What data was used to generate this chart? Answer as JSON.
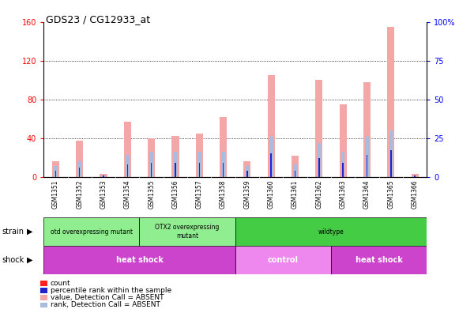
{
  "title": "GDS23 / CG12933_at",
  "samples": [
    "GSM1351",
    "GSM1352",
    "GSM1353",
    "GSM1354",
    "GSM1355",
    "GSM1356",
    "GSM1357",
    "GSM1358",
    "GSM1359",
    "GSM1360",
    "GSM1361",
    "GSM1362",
    "GSM1363",
    "GSM1364",
    "GSM1365",
    "GSM1366"
  ],
  "absent_value": [
    16,
    37,
    3,
    57,
    40,
    42,
    45,
    62,
    16,
    105,
    22,
    100,
    75,
    98,
    155,
    3
  ],
  "absent_rank_pct": [
    7,
    10,
    1,
    14,
    16,
    16,
    16,
    16,
    7,
    26,
    8,
    22,
    16,
    26,
    30,
    1
  ],
  "count_values": [
    3,
    0,
    0,
    0,
    0,
    0,
    0,
    0,
    3,
    0,
    0,
    0,
    0,
    0,
    0,
    0
  ],
  "percentile_rank_pct": [
    4,
    6,
    1,
    8,
    9,
    9,
    9,
    9,
    4,
    15,
    4,
    12,
    9,
    14,
    17,
    1
  ],
  "ylim_left": [
    0,
    160
  ],
  "ylim_right": [
    0,
    100
  ],
  "yticks_left": [
    0,
    40,
    80,
    120,
    160
  ],
  "yticks_right": [
    0,
    25,
    50,
    75,
    100
  ],
  "ytick_labels_left": [
    "0",
    "40",
    "80",
    "120",
    "160"
  ],
  "ytick_labels_right": [
    "0",
    "25",
    "50",
    "75",
    "100%"
  ],
  "absent_value_color": "#F4A7A7",
  "absent_rank_color": "#AABCDE",
  "count_color": "#FF2020",
  "percentile_color": "#2222CC",
  "background_color": "#FFFFFF",
  "strain_colors": [
    "#90EE90",
    "#90EE90",
    "#44CC44"
  ],
  "strain_labels": [
    "otd overexpressing mutant",
    "OTX2 overexpressing\nmutant",
    "wildtype"
  ],
  "strain_ranges": [
    [
      0,
      4
    ],
    [
      4,
      8
    ],
    [
      8,
      16
    ]
  ],
  "shock_labels": [
    "heat shock",
    "control",
    "heat shock"
  ],
  "shock_ranges": [
    [
      0,
      8
    ],
    [
      8,
      12
    ],
    [
      12,
      16
    ]
  ],
  "shock_colors": [
    "#CC44CC",
    "#EE88EE",
    "#CC44CC"
  ],
  "legend_items": [
    {
      "label": "count",
      "color": "#FF2020"
    },
    {
      "label": "percentile rank within the sample",
      "color": "#2222CC"
    },
    {
      "label": "value, Detection Call = ABSENT",
      "color": "#F4A7A7"
    },
    {
      "label": "rank, Detection Call = ABSENT",
      "color": "#AABCDE"
    }
  ]
}
